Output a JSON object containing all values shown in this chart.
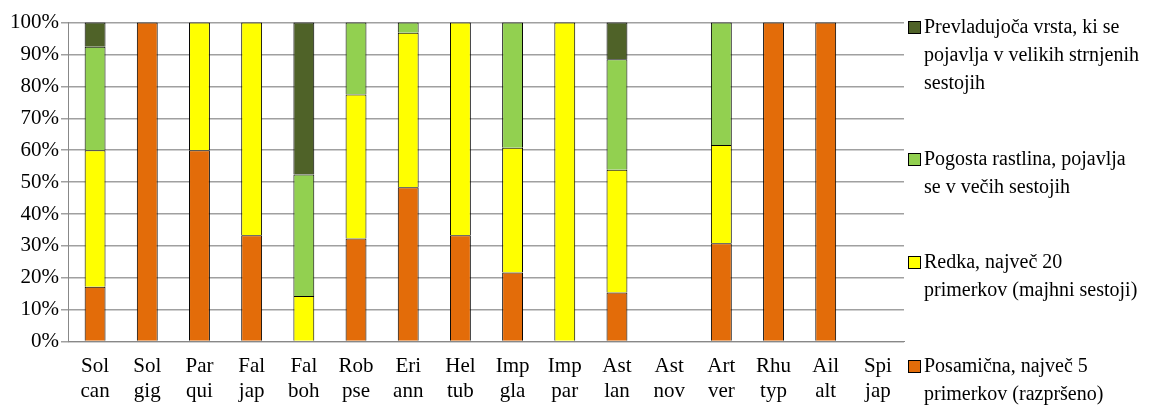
{
  "chart_data": {
    "type": "bar",
    "stacked": true,
    "categories": [
      "Sol can",
      "Sol gig",
      "Par qui",
      "Fal jap",
      "Fal boh",
      "Rob pse",
      "Eri ann",
      "Hel tub",
      "Imp gla",
      "Imp par",
      "Ast lan",
      "Ast nov",
      "Art ver",
      "Rhu typ",
      "Ail alt",
      "Spi jap"
    ],
    "series": [
      {
        "name": "Posamična, največ 5 primerkov (razpršeno)",
        "color": "#e36c09",
        "values": [
          17.2,
          100,
          60,
          33.3,
          0,
          32.3,
          48.4,
          33.3,
          21.7,
          0,
          15.4,
          null,
          30.8,
          100,
          100,
          null
        ]
      },
      {
        "name": "Redka, največ 20 primerkov (majhni sestoji)",
        "color": "#ffff00",
        "values": [
          42.8,
          0,
          40,
          66.7,
          14.3,
          45.2,
          48.4,
          66.7,
          39.1,
          100,
          38.5,
          null,
          30.8,
          0,
          0,
          null
        ]
      },
      {
        "name": "Pogosta rastlina, pojavlja se v večih sestojih",
        "color": "#92d050",
        "values": [
          32.4,
          0,
          0,
          0,
          38.1,
          22.5,
          3.2,
          0,
          39.2,
          0,
          34.6,
          null,
          38.4,
          0,
          0,
          null
        ]
      },
      {
        "name": "Prevladujoča vrsta, ki se pojavlja v velikih strnjenih sestojih",
        "color": "#4f6228",
        "values": [
          7.6,
          0,
          0,
          0,
          47.6,
          0,
          0,
          0,
          0,
          0,
          11.5,
          null,
          0,
          0,
          0,
          null
        ]
      }
    ],
    "ylim": [
      0,
      100
    ],
    "yticks": [
      {
        "value": 0,
        "label": "0%"
      },
      {
        "value": 10,
        "label": "10%"
      },
      {
        "value": 20,
        "label": "20%"
      },
      {
        "value": 30,
        "label": "30%"
      },
      {
        "value": 40,
        "label": "40%"
      },
      {
        "value": 50,
        "label": "50%"
      },
      {
        "value": 60,
        "label": "60%"
      },
      {
        "value": 70,
        "label": "70%"
      },
      {
        "value": 80,
        "label": "80%"
      },
      {
        "value": 90,
        "label": "90%"
      },
      {
        "value": 100,
        "label": "100%"
      }
    ],
    "grid": "y",
    "legend": "right"
  }
}
